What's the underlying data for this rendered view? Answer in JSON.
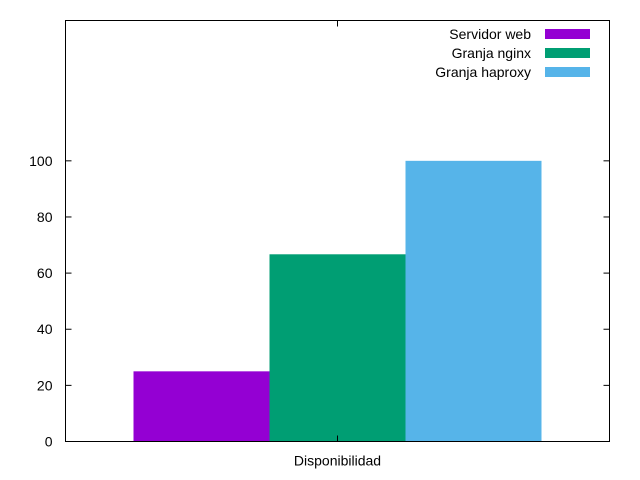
{
  "chart_data": {
    "type": "bar",
    "title": "",
    "xlabel": "",
    "ylabel": "",
    "categories": [
      "Disponibilidad"
    ],
    "series": [
      {
        "name": "Servidor web",
        "values": [
          25
        ],
        "color": "#9400d3"
      },
      {
        "name": "Granja nginx",
        "values": [
          66.7
        ],
        "color": "#009e73"
      },
      {
        "name": "Granja haproxy",
        "values": [
          100
        ],
        "color": "#56b4e9"
      }
    ],
    "ylim": [
      0,
      150
    ],
    "yticks": [
      0,
      20,
      40,
      60,
      80,
      100
    ],
    "grid": false,
    "legend": "top-right"
  }
}
